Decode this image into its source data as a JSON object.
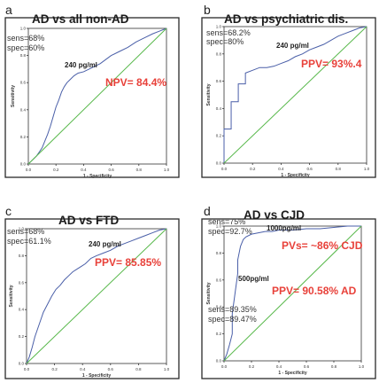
{
  "chart_data": [
    {
      "type": "line",
      "panel": "a",
      "title": "AD vs all non-AD",
      "xlabel": "1 - Specificity",
      "ylabel": "Sensitivity",
      "xlim": [
        0,
        1
      ],
      "ylim": [
        0,
        1
      ],
      "ticks": [
        "0.0",
        "0.2",
        "0.4",
        "0.6",
        "0.8",
        "1.0"
      ],
      "grid": false,
      "annotations": {
        "stat1": "sens=68%",
        "stat2": "spec=60%",
        "cut": "240 pg/ml",
        "red": "NPV= 84.4%"
      },
      "series": [
        {
          "x": [
            0,
            0.02,
            0.04,
            0.06,
            0.08,
            0.1,
            0.12,
            0.14,
            0.16,
            0.18,
            0.2,
            0.22,
            0.24,
            0.26,
            0.28,
            0.3,
            0.33,
            0.36,
            0.4,
            0.44,
            0.48,
            0.52,
            0.56,
            0.6,
            0.66,
            0.72,
            0.78,
            0.84,
            0.9,
            0.95,
            1.0
          ],
          "y": [
            0,
            0.02,
            0.04,
            0.06,
            0.09,
            0.12,
            0.17,
            0.22,
            0.28,
            0.35,
            0.42,
            0.47,
            0.53,
            0.57,
            0.6,
            0.62,
            0.65,
            0.67,
            0.68,
            0.7,
            0.72,
            0.74,
            0.77,
            0.8,
            0.83,
            0.86,
            0.9,
            0.93,
            0.96,
            0.98,
            1.0
          ]
        },
        {
          "x": [
            0,
            1
          ],
          "y": [
            0,
            1
          ]
        }
      ]
    },
    {
      "type": "line",
      "panel": "b",
      "title": "AD vs psychiatric dis.",
      "xlabel": "1 - Specificity",
      "ylabel": "Sensitivity",
      "xlim": [
        0,
        1
      ],
      "ylim": [
        0,
        1
      ],
      "ticks": [
        "0.0",
        "0.2",
        "0.4",
        "0.6",
        "0.8",
        "1.0"
      ],
      "grid": false,
      "annotations": {
        "stat1": "sens=68.2%",
        "stat2": "spec=80%",
        "cut": "240 pg/ml",
        "red": "PPV= 93%.4"
      },
      "series": [
        {
          "x": [
            0,
            0,
            0.05,
            0.05,
            0.1,
            0.1,
            0.15,
            0.15,
            0.2,
            0.25,
            0.3,
            0.35,
            0.4,
            0.45,
            0.5,
            0.55,
            0.6,
            0.65,
            0.7,
            0.75,
            0.8,
            0.85,
            0.9,
            0.95,
            1.0
          ],
          "y": [
            0,
            0.25,
            0.25,
            0.45,
            0.45,
            0.58,
            0.58,
            0.66,
            0.68,
            0.7,
            0.7,
            0.71,
            0.73,
            0.75,
            0.78,
            0.8,
            0.83,
            0.85,
            0.87,
            0.9,
            0.93,
            0.95,
            0.97,
            0.99,
            1.0
          ]
        },
        {
          "x": [
            0,
            1
          ],
          "y": [
            0,
            1
          ]
        }
      ]
    },
    {
      "type": "line",
      "panel": "c",
      "title": "AD vs FTD",
      "xlabel": "1 - Specificity",
      "ylabel": "Sensitivity",
      "xlim": [
        0,
        1
      ],
      "ylim": [
        0,
        1
      ],
      "ticks": [
        "0.0",
        "0.2",
        "0.4",
        "0.6",
        "0.8",
        "1.0"
      ],
      "grid": false,
      "annotations": {
        "stat1": "sens=68%",
        "stat2": "spec=61.1%",
        "cut": "240 pg/ml",
        "red": "PPV= 85.85%"
      },
      "series": [
        {
          "x": [
            0,
            0.02,
            0.04,
            0.06,
            0.08,
            0.1,
            0.12,
            0.15,
            0.18,
            0.21,
            0.24,
            0.27,
            0.3,
            0.33,
            0.36,
            0.39,
            0.42,
            0.46,
            0.5,
            0.55,
            0.6,
            0.65,
            0.7,
            0.75,
            0.8,
            0.85,
            0.9,
            0.95,
            1.0
          ],
          "y": [
            0,
            0.05,
            0.12,
            0.2,
            0.26,
            0.32,
            0.38,
            0.44,
            0.5,
            0.55,
            0.58,
            0.62,
            0.65,
            0.68,
            0.7,
            0.72,
            0.74,
            0.78,
            0.8,
            0.82,
            0.84,
            0.87,
            0.89,
            0.91,
            0.93,
            0.95,
            0.97,
            0.99,
            1.0
          ]
        },
        {
          "x": [
            0,
            1
          ],
          "y": [
            0,
            1
          ]
        }
      ]
    },
    {
      "type": "line",
      "panel": "d",
      "title": "AD vs CJD",
      "xlabel": "1 - Specificity",
      "ylabel": "Sensitivity",
      "xlim": [
        0,
        1
      ],
      "ylim": [
        0,
        1
      ],
      "ticks": [
        "0.0",
        "0.2",
        "0.4",
        "0.6",
        "0.8",
        "1.0"
      ],
      "grid": false,
      "annotations": {
        "stat1": "sens=75%",
        "stat2": "spec=92.7%",
        "cut": "1000pg/ml",
        "cut2": "500pg/ml",
        "stat3": "sens=89.35%",
        "stat4": "spec=89.47%",
        "red": "PVs= ~86% CJD",
        "red2": "PPV= 90.58% AD"
      },
      "series": [
        {
          "x": [
            0,
            0.02,
            0.04,
            0.06,
            0.06,
            0.08,
            0.1,
            0.1,
            0.12,
            0.14,
            0.16,
            0.2,
            0.25,
            0.3,
            0.35,
            0.4,
            0.5,
            0.6,
            0.7,
            0.8,
            0.9,
            1.0
          ],
          "y": [
            0,
            0.05,
            0.12,
            0.2,
            0.35,
            0.5,
            0.65,
            0.75,
            0.85,
            0.9,
            0.92,
            0.94,
            0.95,
            0.96,
            0.96,
            0.97,
            0.97,
            0.98,
            0.98,
            0.99,
            1.0,
            1.0
          ]
        },
        {
          "x": [
            0,
            1
          ],
          "y": [
            0,
            1
          ]
        }
      ]
    }
  ]
}
